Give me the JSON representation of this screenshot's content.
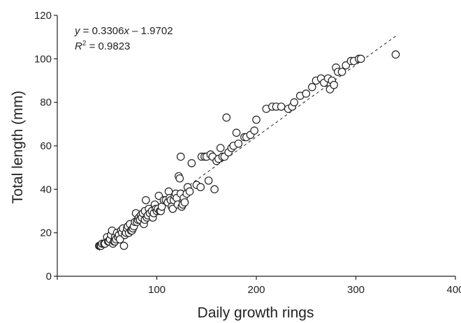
{
  "chart_data": {
    "type": "scatter",
    "title": "",
    "xlabel": "Daily growth rings",
    "ylabel": "Total length (mm)",
    "xlim": [
      0,
      400
    ],
    "ylim": [
      0,
      120
    ],
    "xticks": [
      "0",
      "100",
      "200",
      "300",
      "400"
    ],
    "yticks": [
      "0",
      "20",
      "40",
      "60",
      "80",
      "100",
      "120"
    ],
    "grid": false,
    "legend": "none",
    "annotation": {
      "equation": "y = 0.3306x – 1.9702",
      "r_squared": "R² = 0.9823",
      "eq_prefix_italic": "y",
      "eq_rest_1": " = 0.3306",
      "eq_var_italic": "x",
      "eq_rest_2": " – 1.9702",
      "r2_italic": "R",
      "r2_sup": "2",
      "r2_rest": " = 0.9823"
    },
    "trendline": {
      "slope": 0.3306,
      "intercept": -1.9702,
      "x_range": [
        42,
        340
      ],
      "style": "dashed"
    },
    "points": [
      [
        42,
        14
      ],
      [
        43,
        14
      ],
      [
        44,
        14
      ],
      [
        45,
        15
      ],
      [
        47,
        15
      ],
      [
        48,
        15
      ],
      [
        50,
        18
      ],
      [
        51,
        16
      ],
      [
        52,
        16
      ],
      [
        53,
        17
      ],
      [
        54,
        19
      ],
      [
        55,
        21
      ],
      [
        56,
        15
      ],
      [
        57,
        16
      ],
      [
        58,
        16
      ],
      [
        58,
        18
      ],
      [
        59,
        17
      ],
      [
        60,
        20
      ],
      [
        61,
        18
      ],
      [
        62,
        19
      ],
      [
        63,
        17
      ],
      [
        64,
        21
      ],
      [
        65,
        20
      ],
      [
        66,
        22
      ],
      [
        67,
        14
      ],
      [
        68,
        19
      ],
      [
        69,
        20
      ],
      [
        70,
        22
      ],
      [
        71,
        23
      ],
      [
        72,
        20
      ],
      [
        73,
        24
      ],
      [
        74,
        21
      ],
      [
        75,
        21
      ],
      [
        76,
        22
      ],
      [
        77,
        23
      ],
      [
        78,
        25
      ],
      [
        79,
        29
      ],
      [
        80,
        25
      ],
      [
        81,
        26
      ],
      [
        82,
        27
      ],
      [
        83,
        26
      ],
      [
        84,
        28
      ],
      [
        85,
        27
      ],
      [
        86,
        29
      ],
      [
        87,
        24
      ],
      [
        88,
        30
      ],
      [
        88,
        26
      ],
      [
        89,
        35
      ],
      [
        90,
        27
      ],
      [
        91,
        28
      ],
      [
        92,
        31
      ],
      [
        93,
        29
      ],
      [
        95,
        30
      ],
      [
        96,
        27
      ],
      [
        97,
        29
      ],
      [
        98,
        33
      ],
      [
        99,
        31
      ],
      [
        100,
        30
      ],
      [
        101,
        31
      ],
      [
        102,
        37
      ],
      [
        103,
        30
      ],
      [
        104,
        30
      ],
      [
        105,
        32
      ],
      [
        107,
        35
      ],
      [
        109,
        35
      ],
      [
        111,
        34
      ],
      [
        112,
        39
      ],
      [
        113,
        36
      ],
      [
        114,
        35
      ],
      [
        115,
        32
      ],
      [
        116,
        31
      ],
      [
        117,
        35
      ],
      [
        118,
        37
      ],
      [
        119,
        38
      ],
      [
        120,
        36
      ],
      [
        121,
        33
      ],
      [
        122,
        46
      ],
      [
        123,
        45
      ],
      [
        124,
        38
      ],
      [
        124,
        55
      ],
      [
        125,
        32
      ],
      [
        126,
        33
      ],
      [
        127,
        36
      ],
      [
        128,
        34
      ],
      [
        130,
        38
      ],
      [
        131,
        41
      ],
      [
        133,
        39
      ],
      [
        135,
        52
      ],
      [
        140,
        42
      ],
      [
        144,
        41
      ],
      [
        145,
        55
      ],
      [
        148,
        55
      ],
      [
        150,
        55
      ],
      [
        152,
        44
      ],
      [
        154,
        56
      ],
      [
        156,
        55
      ],
      [
        158,
        40
      ],
      [
        160,
        53
      ],
      [
        162,
        54
      ],
      [
        164,
        59
      ],
      [
        166,
        55
      ],
      [
        168,
        55
      ],
      [
        170,
        73
      ],
      [
        172,
        57
      ],
      [
        175,
        59
      ],
      [
        177,
        60
      ],
      [
        180,
        66
      ],
      [
        182,
        61
      ],
      [
        188,
        64
      ],
      [
        190,
        64
      ],
      [
        194,
        65
      ],
      [
        198,
        67
      ],
      [
        200,
        72
      ],
      [
        210,
        77
      ],
      [
        216,
        78
      ],
      [
        220,
        78
      ],
      [
        225,
        78
      ],
      [
        232,
        77
      ],
      [
        236,
        78
      ],
      [
        238,
        80
      ],
      [
        244,
        83
      ],
      [
        250,
        84
      ],
      [
        256,
        87
      ],
      [
        260,
        90
      ],
      [
        265,
        91
      ],
      [
        268,
        89
      ],
      [
        272,
        91
      ],
      [
        274,
        86
      ],
      [
        276,
        90
      ],
      [
        278,
        88
      ],
      [
        280,
        96
      ],
      [
        282,
        94
      ],
      [
        286,
        94
      ],
      [
        290,
        97
      ],
      [
        295,
        99
      ],
      [
        298,
        99
      ],
      [
        303,
        100
      ],
      [
        305,
        100
      ],
      [
        340,
        102
      ]
    ]
  }
}
